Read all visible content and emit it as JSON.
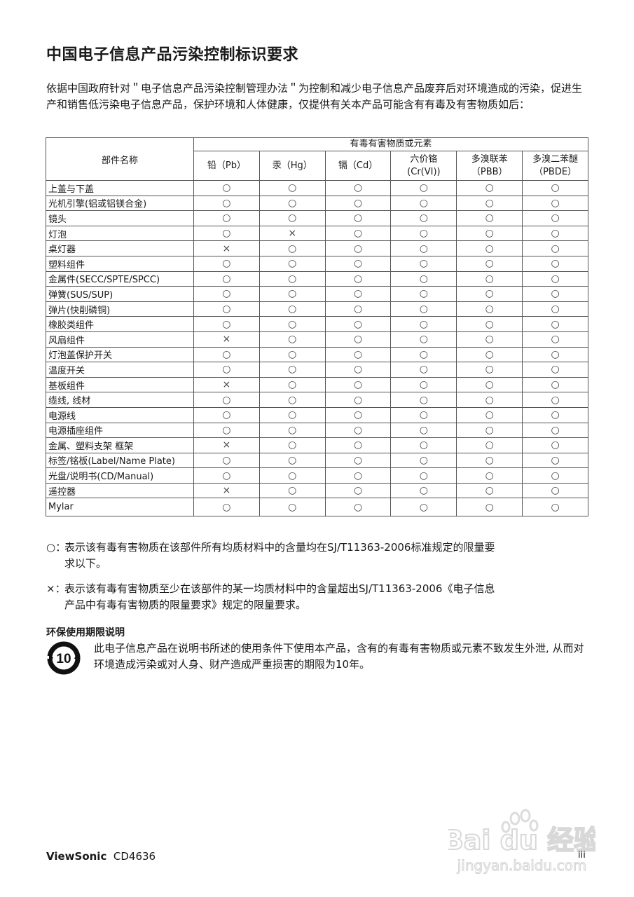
{
  "title": "中国电子信息产品污染控制标识要求",
  "intro": "依据中国政府针对＂电子信息产品污染控制管理办法＂为控制和减少电子信息产品废弃后对环境造成的污染，促进生产和销售低污染电子信息产品，保护环境和人体健康，仅提供有关本产品可能含有有毒及有害物质如后：",
  "table": {
    "part_header": "部件名称",
    "group_header": "有毒有害物质或元素",
    "columns": [
      [
        "铅（Pb）"
      ],
      [
        "汞（Hg）"
      ],
      [
        "镉（Cd）"
      ],
      [
        "六价铬",
        "(Cr(VI))"
      ],
      [
        "多溴联苯",
        "（PBB）"
      ],
      [
        "多溴二苯醚",
        "（PBDE）"
      ]
    ],
    "rows": [
      {
        "part": "上盖与下盖",
        "marks": [
          "○",
          "○",
          "○",
          "○",
          "○",
          "○"
        ]
      },
      {
        "part": "光机引擎(铝或铝镁合金)",
        "marks": [
          "○",
          "○",
          "○",
          "○",
          "○",
          "○"
        ]
      },
      {
        "part": "镜头",
        "marks": [
          "○",
          "○",
          "○",
          "○",
          "○",
          "○"
        ]
      },
      {
        "part": "灯泡",
        "marks": [
          "○",
          "×",
          "○",
          "○",
          "○",
          "○"
        ]
      },
      {
        "part": "桌灯器",
        "marks": [
          "×",
          "○",
          "○",
          "○",
          "○",
          "○"
        ]
      },
      {
        "part": "塑料组件",
        "marks": [
          "○",
          "○",
          "○",
          "○",
          "○",
          "○"
        ]
      },
      {
        "part": "金属件(SECC/SPTE/SPCC)",
        "marks": [
          "○",
          "○",
          "○",
          "○",
          "○",
          "○"
        ]
      },
      {
        "part": "弹簧(SUS/SUP)",
        "marks": [
          "○",
          "○",
          "○",
          "○",
          "○",
          "○"
        ]
      },
      {
        "part": "弹片(快削磷铜)",
        "marks": [
          "○",
          "○",
          "○",
          "○",
          "○",
          "○"
        ]
      },
      {
        "part": "橡胶类组件",
        "marks": [
          "○",
          "○",
          "○",
          "○",
          "○",
          "○"
        ]
      },
      {
        "part": "风扇组件",
        "marks": [
          "×",
          "○",
          "○",
          "○",
          "○",
          "○"
        ]
      },
      {
        "part": "灯泡盖保护开关",
        "marks": [
          "○",
          "○",
          "○",
          "○",
          "○",
          "○"
        ]
      },
      {
        "part": "温度开关",
        "marks": [
          "○",
          "○",
          "○",
          "○",
          "○",
          "○"
        ]
      },
      {
        "part": "基板组件",
        "marks": [
          "×",
          "○",
          "○",
          "○",
          "○",
          "○"
        ]
      },
      {
        "part": "缆线, 线材",
        "marks": [
          "○",
          "○",
          "○",
          "○",
          "○",
          "○"
        ]
      },
      {
        "part": "电源线",
        "marks": [
          "○",
          "○",
          "○",
          "○",
          "○",
          "○"
        ]
      },
      {
        "part": "电源插座组件",
        "marks": [
          "○",
          "○",
          "○",
          "○",
          "○",
          "○"
        ]
      },
      {
        "part": "金属、塑料支架  框架",
        "marks": [
          "×",
          "○",
          "○",
          "○",
          "○",
          "○"
        ]
      },
      {
        "part": "标签/铭板(Label/Name Plate)",
        "marks": [
          "○",
          "○",
          "○",
          "○",
          "○",
          "○"
        ]
      },
      {
        "part": "光盘/说明书(CD/Manual)",
        "marks": [
          "○",
          "○",
          "○",
          "○",
          "○",
          "○"
        ]
      },
      {
        "part": "遥控器",
        "marks": [
          "×",
          "○",
          "○",
          "○",
          "○",
          "○"
        ]
      },
      {
        "part": "Mylar",
        "marks": [
          "○",
          "○",
          "○",
          "○",
          "○",
          "○"
        ]
      }
    ]
  },
  "notes": [
    {
      "symbol": "○：",
      "line1": "表示该有毒有害物质在该部件所有均质材料中的含量均在SJ/T11363-2006标准规定的限量要",
      "line2": "求以下。"
    },
    {
      "symbol": "×：",
      "line1": "表示该有毒有害物质至少在该部件的某一均质材料中的含量超出SJ/T11363-2006《电子信息",
      "line2": "产品中有毒有害物质的限量要求》规定的限量要求。"
    }
  ],
  "eco": {
    "title": "环保使用期限说明",
    "logo_text": "10",
    "text": "此电子信息产品在说明书所述的使用条件下使用本产品，含有的有毒有害物质或元素不致发生外泄, 从而对环境造成污染或对人身、财产造成严重损害的期限为10年。"
  },
  "footer": {
    "brand": "ViewSonic",
    "model": "CD4636",
    "page": "iii"
  },
  "watermark": {
    "logo_text": "Bai du 经验",
    "url": "jingyan.baidu.com"
  }
}
